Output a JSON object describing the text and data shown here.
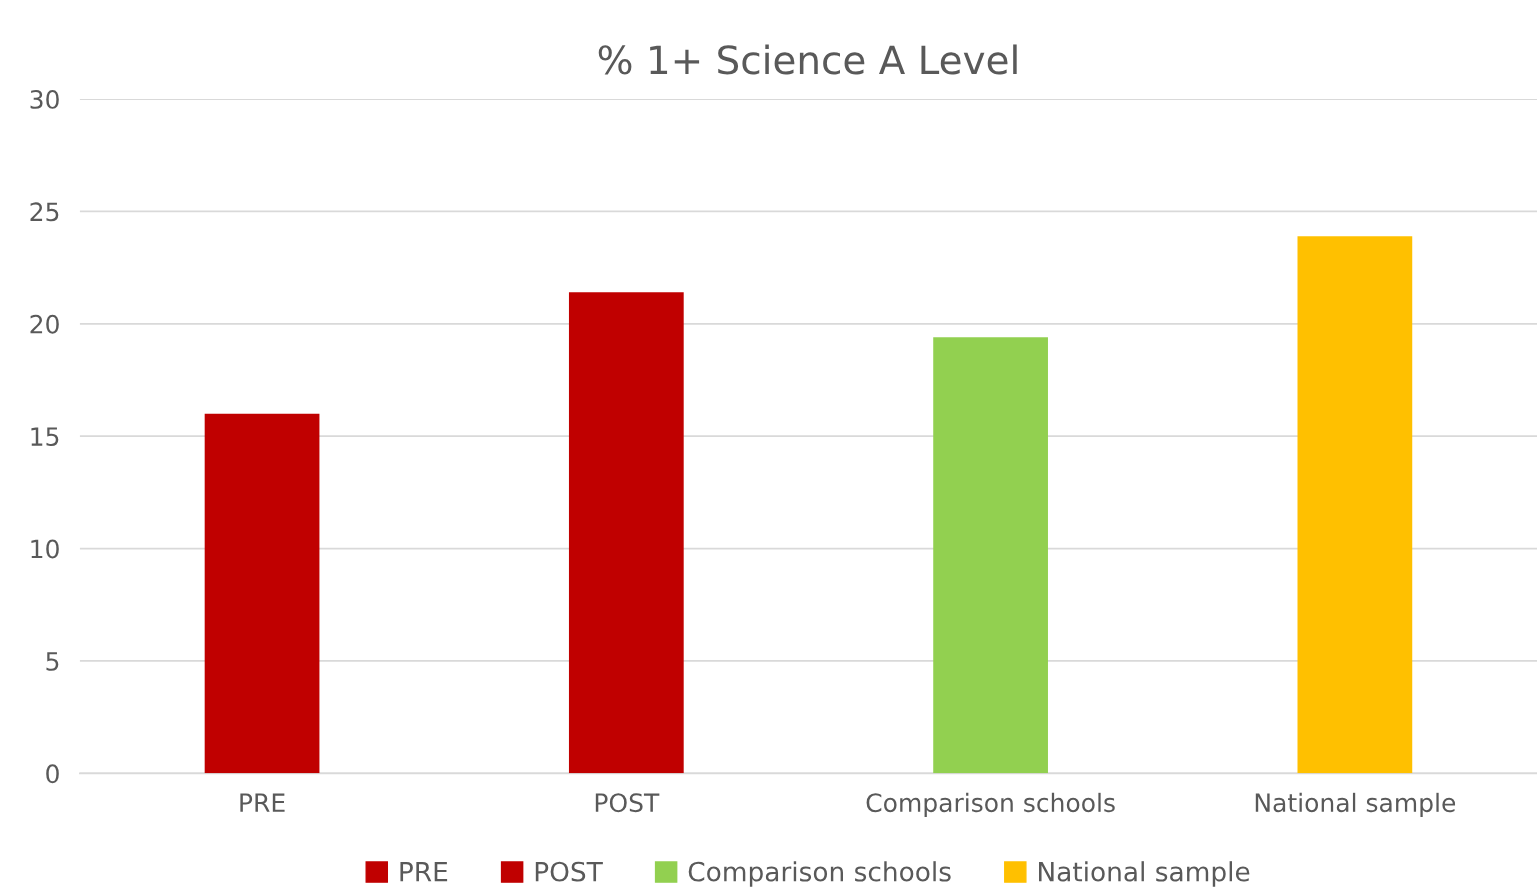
{
  "chart_data": {
    "type": "bar",
    "title": "% 1+ Science A Level",
    "categories": [
      "PRE",
      "POST",
      "Comparison schools",
      "National sample"
    ],
    "series": [
      {
        "name": "PRE",
        "color": "#c00000",
        "values": [
          16,
          null,
          null,
          null
        ]
      },
      {
        "name": "POST",
        "color": "#c00000",
        "values": [
          null,
          21.4,
          null,
          null
        ]
      },
      {
        "name": "Comparison schools",
        "color": "#92d050",
        "values": [
          null,
          null,
          19.4,
          null
        ]
      },
      {
        "name": "National sample",
        "color": "#ffc000",
        "values": [
          null,
          null,
          null,
          23.9
        ]
      }
    ],
    "ylim": [
      0,
      30
    ],
    "yticks": [
      0,
      5,
      10,
      15,
      20,
      25,
      30
    ],
    "grid": "y",
    "legend": "bottom"
  }
}
